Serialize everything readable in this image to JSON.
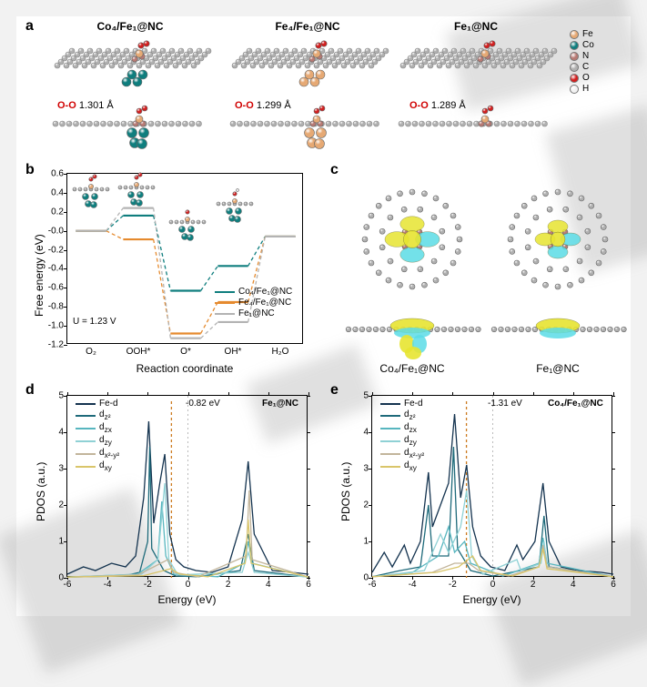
{
  "panelA": {
    "label": "a",
    "columns": [
      {
        "title": "Co₄/Fe₁@NC",
        "oo": "1.301 Å"
      },
      {
        "title": "Fe₄/Fe₁@NC",
        "oo": "1.299 Å"
      },
      {
        "title": "Fe₁@NC",
        "oo": "1.289 Å"
      }
    ],
    "legend": [
      {
        "name": "Fe",
        "color": "#e6a974"
      },
      {
        "name": "Co",
        "color": "#0f7e7e"
      },
      {
        "name": "N",
        "color": "#b77a74"
      },
      {
        "name": "C",
        "color": "#b0b0b0"
      },
      {
        "name": "O",
        "color": "#d21f1f"
      },
      {
        "name": "H",
        "color": "#f2f2f2"
      }
    ],
    "oolabel": "O-O"
  },
  "panelB": {
    "label": "b",
    "ylabel": "Free energy (eV)",
    "xlabel": "Reaction coordinate",
    "potential": "U = 1.23 V",
    "ylim": [
      -1.2,
      0.6
    ],
    "ytick_step": 0.2,
    "xcats": [
      "O₂",
      "OOH*",
      "O*",
      "OH*",
      "H₂O"
    ],
    "series": [
      {
        "name": "Co₄/Fe₁@NC",
        "color": "#0f7e7e",
        "y": [
          0.0,
          0.16,
          -0.63,
          -0.37,
          -0.06
        ]
      },
      {
        "name": "Fe₄/Fe₁@NC",
        "color": "#e58a2e",
        "y": [
          0.0,
          -0.09,
          -1.08,
          -0.75,
          -0.06
        ]
      },
      {
        "name": "Fe₁@NC",
        "color": "#b3b3b3",
        "y": [
          0.0,
          0.24,
          -1.13,
          -0.96,
          -0.06
        ]
      }
    ]
  },
  "panelC": {
    "label": "c",
    "left_label": "Co₄/Fe₁@NC",
    "right_label": "Fe₁@NC"
  },
  "panelD": {
    "label": "d",
    "title": "Fe₁@NC",
    "ylabel": "PDOS (a.u.)",
    "xlabel": "Energy (eV)",
    "xlim": [
      -6,
      6
    ],
    "xtick_step": 2,
    "ylim": [
      0,
      5
    ],
    "ytick_step": 1,
    "annot": "-0.82 eV",
    "legend": [
      {
        "name": "Fe-d",
        "color": "#14334f"
      },
      {
        "name": "d_z²",
        "color": "#1e6a7a"
      },
      {
        "name": "d_zx",
        "color": "#57b6bf"
      },
      {
        "name": "d_zy",
        "color": "#8fd1d5"
      },
      {
        "name": "d_x²-y²",
        "color": "#c2b59b"
      },
      {
        "name": "d_xy",
        "color": "#d9c56a"
      }
    ],
    "curves": {
      "Fe-d": [
        [
          -6,
          0.1
        ],
        [
          -5.2,
          0.3
        ],
        [
          -4.6,
          0.2
        ],
        [
          -3.8,
          0.4
        ],
        [
          -3.1,
          0.3
        ],
        [
          -2.6,
          0.6
        ],
        [
          -2.2,
          2.2
        ],
        [
          -1.95,
          4.3
        ],
        [
          -1.7,
          1.5
        ],
        [
          -1.4,
          2.6
        ],
        [
          -1.15,
          3.4
        ],
        [
          -0.9,
          1.2
        ],
        [
          -0.6,
          0.5
        ],
        [
          -0.2,
          0.3
        ],
        [
          0.4,
          0.2
        ],
        [
          1.2,
          0.15
        ],
        [
          2.0,
          0.3
        ],
        [
          2.7,
          1.6
        ],
        [
          3.0,
          3.2
        ],
        [
          3.3,
          1.2
        ],
        [
          4.2,
          0.2
        ],
        [
          5.2,
          0.15
        ],
        [
          6,
          0.1
        ]
      ],
      "d_z²": [
        [
          -6,
          0.02
        ],
        [
          -3.2,
          0.05
        ],
        [
          -2.4,
          0.15
        ],
        [
          -2.0,
          1.0
        ],
        [
          -1.9,
          3.6
        ],
        [
          -1.8,
          0.8
        ],
        [
          -1.2,
          0.2
        ],
        [
          -0.6,
          0.05
        ],
        [
          0.5,
          0.03
        ],
        [
          2.6,
          0.2
        ],
        [
          3.0,
          1.2
        ],
        [
          3.3,
          0.2
        ],
        [
          6,
          0.02
        ]
      ],
      "d_zx": [
        [
          -6,
          0.02
        ],
        [
          -2.5,
          0.1
        ],
        [
          -1.5,
          0.5
        ],
        [
          -1.3,
          2.1
        ],
        [
          -1.1,
          0.6
        ],
        [
          -0.7,
          0.1
        ],
        [
          1.5,
          0.03
        ],
        [
          2.8,
          0.4
        ],
        [
          3.0,
          1.0
        ],
        [
          3.2,
          0.4
        ],
        [
          6,
          0.02
        ]
      ],
      "d_zy": [
        [
          -6,
          0.02
        ],
        [
          -2.3,
          0.1
        ],
        [
          -1.5,
          0.5
        ],
        [
          -1.15,
          2.6
        ],
        [
          -0.95,
          0.5
        ],
        [
          -0.5,
          0.08
        ],
        [
          2.7,
          0.15
        ],
        [
          3.0,
          0.7
        ],
        [
          3.3,
          0.15
        ],
        [
          6,
          0.02
        ]
      ],
      "d_x²-y²": [
        [
          -6,
          0.02
        ],
        [
          -2.5,
          0.08
        ],
        [
          -1.7,
          0.3
        ],
        [
          -1.0,
          0.5
        ],
        [
          -0.7,
          0.15
        ],
        [
          0.5,
          0.03
        ],
        [
          2.9,
          0.6
        ],
        [
          3.05,
          2.4
        ],
        [
          3.2,
          0.5
        ],
        [
          6,
          0.02
        ]
      ],
      "d_xy": [
        [
          -6,
          0.02
        ],
        [
          -2.2,
          0.06
        ],
        [
          -1.2,
          0.2
        ],
        [
          -0.85,
          0.25
        ],
        [
          -0.4,
          0.1
        ],
        [
          1.0,
          0.03
        ],
        [
          2.85,
          0.4
        ],
        [
          3.0,
          1.6
        ],
        [
          3.15,
          0.4
        ],
        [
          6,
          0.02
        ]
      ]
    },
    "fermi_color": "#cc7a1f"
  },
  "panelE": {
    "label": "e",
    "title": "Co₄/Fe₁@NC",
    "ylabel": "PDOS (a.u.)",
    "xlabel": "Energy (eV)",
    "xlim": [
      -6,
      6
    ],
    "xtick_step": 2,
    "ylim": [
      0,
      5
    ],
    "ytick_step": 1,
    "annot": "-1.31 eV",
    "legend": [
      {
        "name": "Fe-d",
        "color": "#14334f"
      },
      {
        "name": "d_z²",
        "color": "#1e6a7a"
      },
      {
        "name": "d_zx",
        "color": "#57b6bf"
      },
      {
        "name": "d_zy",
        "color": "#8fd1d5"
      },
      {
        "name": "d_x²-y²",
        "color": "#c2b59b"
      },
      {
        "name": "d_xy",
        "color": "#d9c56a"
      }
    ],
    "curves": {
      "Fe-d": [
        [
          -6,
          0.15
        ],
        [
          -5.4,
          0.7
        ],
        [
          -5.0,
          0.3
        ],
        [
          -4.4,
          0.9
        ],
        [
          -4.1,
          0.4
        ],
        [
          -3.6,
          1.0
        ],
        [
          -3.2,
          2.9
        ],
        [
          -3.0,
          1.4
        ],
        [
          -2.6,
          2.0
        ],
        [
          -2.2,
          2.6
        ],
        [
          -1.9,
          4.5
        ],
        [
          -1.6,
          2.2
        ],
        [
          -1.3,
          3.1
        ],
        [
          -1.0,
          1.4
        ],
        [
          -0.6,
          0.6
        ],
        [
          -0.1,
          0.3
        ],
        [
          0.6,
          0.2
        ],
        [
          1.2,
          0.9
        ],
        [
          1.5,
          0.5
        ],
        [
          2.1,
          1.0
        ],
        [
          2.5,
          2.6
        ],
        [
          2.8,
          1.0
        ],
        [
          3.4,
          0.3
        ],
        [
          4.2,
          0.2
        ],
        [
          5.4,
          0.15
        ],
        [
          6,
          0.1
        ]
      ],
      "d_z²": [
        [
          -6,
          0.03
        ],
        [
          -4.6,
          0.2
        ],
        [
          -3.6,
          0.3
        ],
        [
          -3.2,
          2.0
        ],
        [
          -3.0,
          0.6
        ],
        [
          -2.2,
          0.6
        ],
        [
          -1.95,
          3.6
        ],
        [
          -1.75,
          0.8
        ],
        [
          -1.1,
          0.2
        ],
        [
          0.0,
          0.05
        ],
        [
          2.3,
          0.3
        ],
        [
          2.55,
          1.7
        ],
        [
          2.8,
          0.3
        ],
        [
          6,
          0.03
        ]
      ],
      "d_zx": [
        [
          -6,
          0.03
        ],
        [
          -4.0,
          0.15
        ],
        [
          -2.7,
          0.6
        ],
        [
          -2.2,
          1.4
        ],
        [
          -1.9,
          0.7
        ],
        [
          -1.4,
          1.0
        ],
        [
          -1.1,
          0.4
        ],
        [
          0.5,
          0.05
        ],
        [
          2.3,
          0.4
        ],
        [
          2.5,
          1.1
        ],
        [
          2.7,
          0.4
        ],
        [
          6,
          0.03
        ]
      ],
      "d_zy": [
        [
          -6,
          0.03
        ],
        [
          -3.4,
          0.2
        ],
        [
          -2.6,
          1.2
        ],
        [
          -2.2,
          0.7
        ],
        [
          -1.6,
          1.4
        ],
        [
          -1.3,
          2.4
        ],
        [
          -1.05,
          0.6
        ],
        [
          -0.5,
          0.1
        ],
        [
          1.2,
          0.5
        ],
        [
          1.4,
          0.2
        ],
        [
          2.4,
          0.4
        ],
        [
          2.55,
          1.0
        ],
        [
          2.7,
          0.3
        ],
        [
          6,
          0.03
        ]
      ],
      "d_x²-y²": [
        [
          -6,
          0.03
        ],
        [
          -3.0,
          0.15
        ],
        [
          -1.9,
          0.4
        ],
        [
          -1.2,
          0.4
        ],
        [
          -0.7,
          0.2
        ],
        [
          0.8,
          0.05
        ],
        [
          2.3,
          0.3
        ],
        [
          2.5,
          0.9
        ],
        [
          2.7,
          0.3
        ],
        [
          6,
          0.03
        ]
      ],
      "d_xy": [
        [
          -6,
          0.03
        ],
        [
          -2.8,
          0.15
        ],
        [
          -1.7,
          0.3
        ],
        [
          -1.0,
          0.6
        ],
        [
          -0.6,
          0.2
        ],
        [
          1.0,
          0.05
        ],
        [
          2.3,
          0.3
        ],
        [
          2.5,
          0.8
        ],
        [
          2.7,
          0.25
        ],
        [
          6,
          0.03
        ]
      ]
    },
    "fermi_color": "#cc7a1f"
  }
}
